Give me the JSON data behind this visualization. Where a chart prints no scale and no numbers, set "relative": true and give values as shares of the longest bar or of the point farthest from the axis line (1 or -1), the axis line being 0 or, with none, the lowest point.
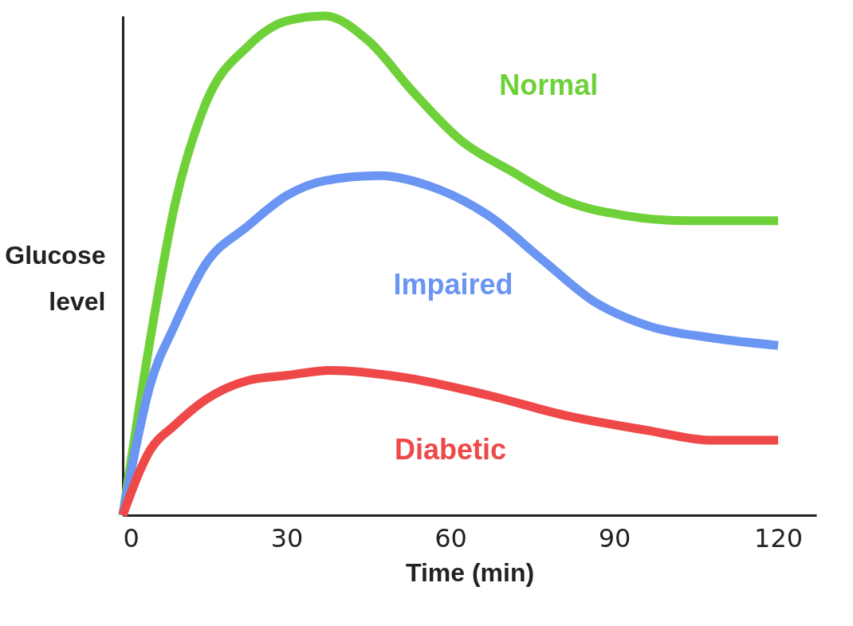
{
  "chart_data": {
    "type": "line",
    "relative": true,
    "xlabel": "Time (min)",
    "ylabel": "Glucose level",
    "xlim": [
      0,
      127
    ],
    "xticks": [
      0,
      30,
      60,
      90,
      120
    ],
    "series": [
      {
        "name": "Normal",
        "color": "#6fd13a",
        "x": [
          0,
          5,
          9.5,
          15,
          23,
          30,
          37,
          45,
          53,
          62,
          71,
          81,
          92,
          103,
          120
        ],
        "values": [
          0,
          0.35,
          0.62,
          0.82,
          0.94,
          0.99,
          1,
          0.95,
          0.85,
          0.75,
          0.69,
          0.63,
          0.6,
          0.59,
          0.59
        ]
      },
      {
        "name": "Impaired",
        "color": "#6a95f2",
        "x": [
          0,
          5,
          9.5,
          15,
          23,
          30,
          37,
          47,
          56,
          67,
          77,
          86,
          96,
          108,
          120
        ],
        "values": [
          0,
          0.26,
          0.38,
          0.5,
          0.58,
          0.64,
          0.67,
          0.68,
          0.66,
          0.6,
          0.51,
          0.43,
          0.38,
          0.355,
          0.34
        ]
      },
      {
        "name": "Diabetic",
        "color": "#ef4848",
        "x": [
          0,
          5,
          9.5,
          15,
          23,
          30,
          38,
          52,
          67,
          81,
          96,
          108,
          120
        ],
        "values": [
          0,
          0.13,
          0.18,
          0.23,
          0.27,
          0.28,
          0.29,
          0.275,
          0.24,
          0.2,
          0.17,
          0.15,
          0.15
        ]
      }
    ]
  }
}
